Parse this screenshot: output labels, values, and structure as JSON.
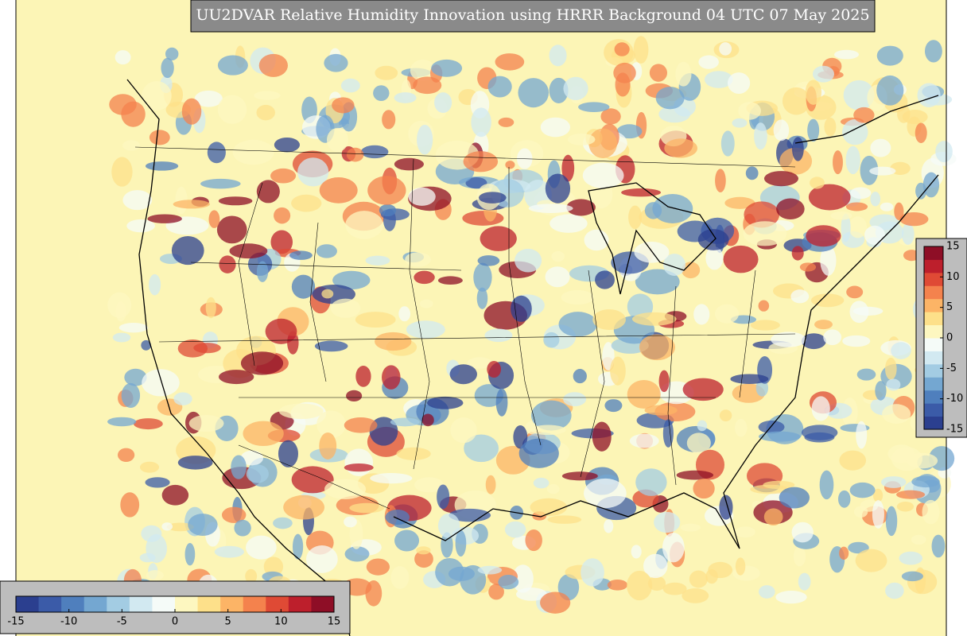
{
  "title": "UU2DVAR Relative Humidity Innovation using HRRR Background 04 UTC 07 May 2025",
  "colorbar": {
    "range": [
      -15,
      15
    ],
    "ticks": [
      -15,
      -10,
      -5,
      0,
      5,
      10,
      15
    ],
    "colors": [
      "#2b3f8f",
      "#3b5ba8",
      "#4f7fbd",
      "#74a7d1",
      "#a3cce3",
      "#d2e9f1",
      "#f5fbf8",
      "#fdf7c0",
      "#fde08a",
      "#fcb466",
      "#f4824d",
      "#df4a35",
      "#bd1f2c",
      "#8e0e26"
    ]
  }
}
